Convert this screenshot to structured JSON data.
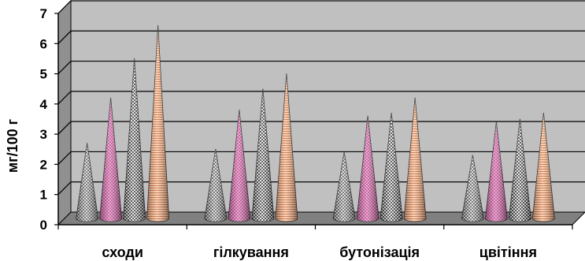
{
  "chart_data": {
    "type": "bar",
    "bar_shape": "cone",
    "view": "3d",
    "categories": [
      "сходи",
      "гілкування",
      "бутонізація",
      "цвітіння"
    ],
    "series": [
      {
        "values": [
          2.5,
          2.3,
          2.2,
          2.1
        ],
        "color": "#d8d8d8",
        "pattern": "fine-diagonal-grid"
      },
      {
        "values": [
          4.0,
          3.6,
          3.4,
          3.2
        ],
        "color": "#e07ab8",
        "pattern": "fine-diagonal-grid"
      },
      {
        "values": [
          5.3,
          4.3,
          3.5,
          3.3
        ],
        "color": "#b0b0b0",
        "pattern": "checker"
      },
      {
        "values": [
          6.4,
          4.8,
          4.0,
          3.5
        ],
        "color": "#f4a070",
        "pattern": "fine-horizontal"
      }
    ],
    "title": "",
    "xlabel": "",
    "ylabel": "мг/100 г",
    "ylim": [
      0,
      7
    ],
    "yticks": [
      "0",
      "1",
      "2",
      "3",
      "4",
      "5",
      "6",
      "7"
    ],
    "grid": true,
    "plot_background": "#c0c0c0",
    "wall_color": "#909090"
  }
}
